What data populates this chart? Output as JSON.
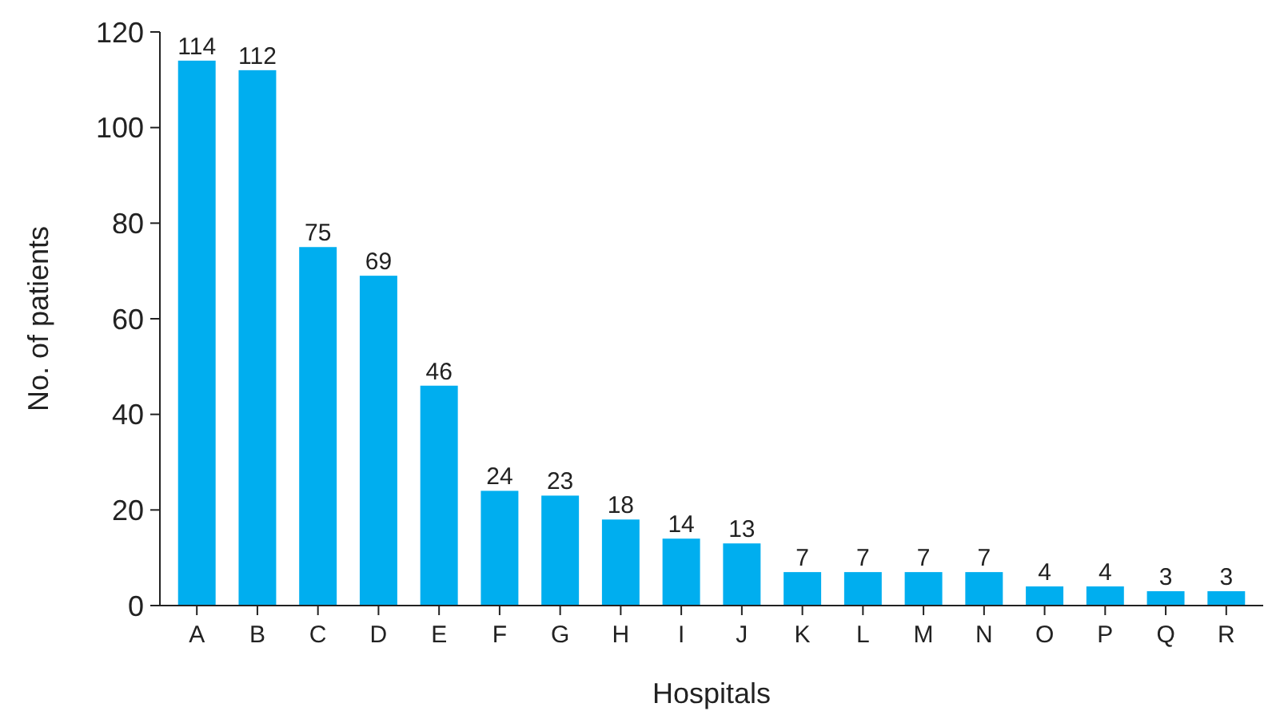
{
  "chart_data": {
    "type": "bar",
    "xlabel": "Hospitals",
    "ylabel": "No. of patients",
    "categories": [
      "A",
      "B",
      "C",
      "D",
      "E",
      "F",
      "G",
      "H",
      "I",
      "J",
      "K",
      "L",
      "M",
      "N",
      "O",
      "P",
      "Q",
      "R"
    ],
    "values": [
      114,
      112,
      75,
      69,
      46,
      24,
      23,
      18,
      14,
      13,
      7,
      7,
      7,
      7,
      4,
      4,
      3,
      3
    ],
    "color": "#00aeef",
    "ylim": [
      0,
      120
    ],
    "yticks": [
      0,
      20,
      40,
      60,
      80,
      100,
      120
    ],
    "grid": false,
    "data_labels": true
  }
}
